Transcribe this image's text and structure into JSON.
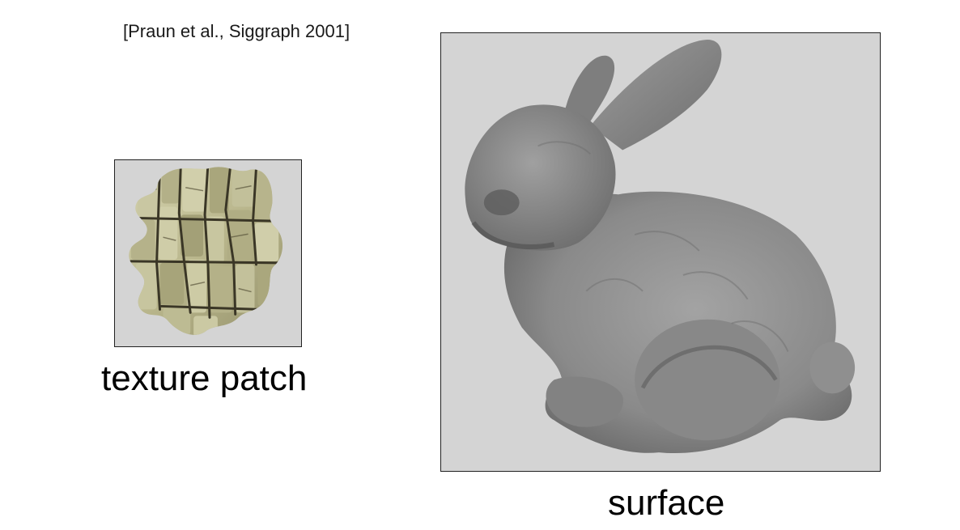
{
  "citation": "[Praun et al., Siggraph 2001]",
  "texture_patch": {
    "caption": "texture patch",
    "icon": "stone-texture-patch-image",
    "colors": {
      "background": "#d4d4d4",
      "stone_light": "#c9c7a2",
      "stone_mid": "#a9a67c",
      "crack": "#3a3626"
    }
  },
  "surface": {
    "caption": "surface",
    "icon": "stanford-bunny-image",
    "colors": {
      "background": "#d4d4d4",
      "bunny_light": "#9a9a9a",
      "bunny_dark": "#5a5a5a"
    }
  }
}
